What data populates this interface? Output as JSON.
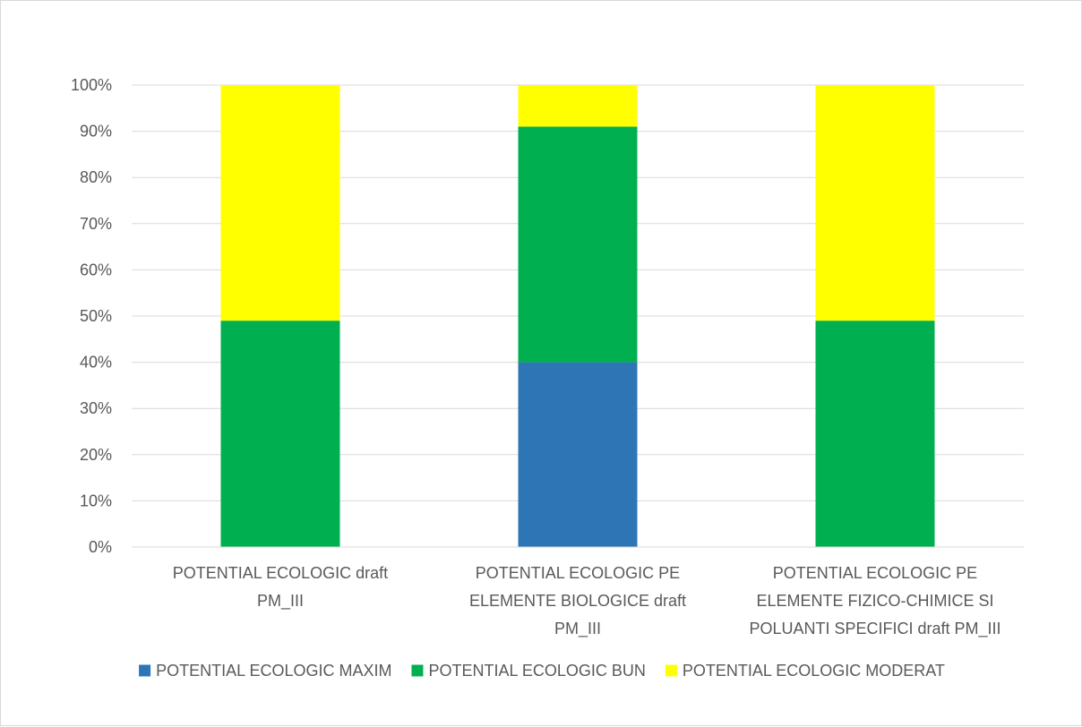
{
  "chart_data": {
    "type": "bar",
    "stacked": true,
    "percent": true,
    "title": "",
    "xlabel": "",
    "ylabel": "",
    "ylim": [
      0,
      100
    ],
    "yticks": [
      "0%",
      "10%",
      "20%",
      "30%",
      "40%",
      "50%",
      "60%",
      "70%",
      "80%",
      "90%",
      "100%"
    ],
    "grid": true,
    "legend_position": "bottom",
    "categories": [
      [
        "POTENTIAL ECOLOGIC  draft",
        "PM_III"
      ],
      [
        "POTENTIAL ECOLOGIC PE",
        "ELEMENTE BIOLOGICE draft",
        "PM_III"
      ],
      [
        "POTENTIAL ECOLOGIC PE",
        "ELEMENTE FIZICO-CHIMICE SI",
        "POLUANTI SPECIFICI draft PM_III"
      ]
    ],
    "series": [
      {
        "name": "POTENTIAL ECOLOGIC MAXIM",
        "color": "#2e75b6",
        "values": [
          0,
          40,
          0
        ]
      },
      {
        "name": "POTENTIAL ECOLOGIC BUN",
        "color": "#00b050",
        "values": [
          49,
          51,
          49
        ]
      },
      {
        "name": "POTENTIAL ECOLOGIC MODERAT",
        "color": "#ffff00",
        "values": [
          51,
          9,
          51
        ]
      }
    ]
  }
}
